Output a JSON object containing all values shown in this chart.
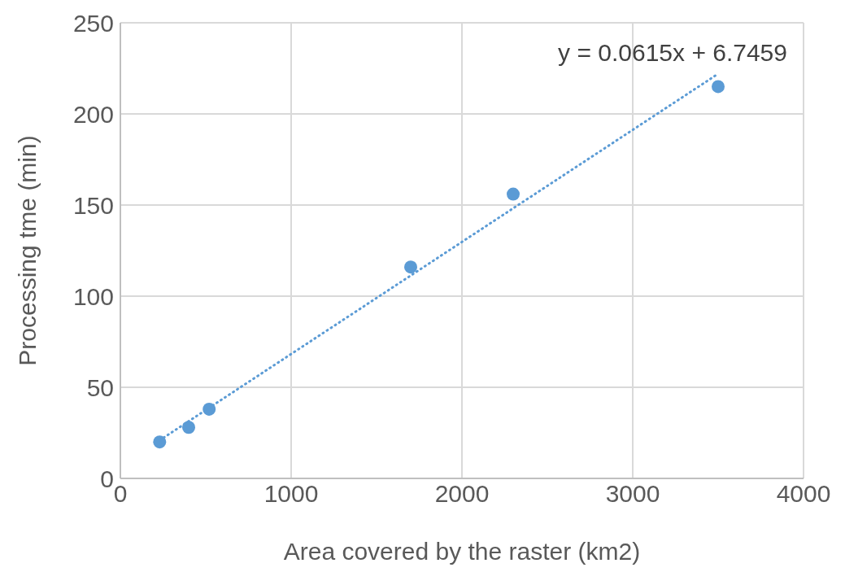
{
  "chart_data": {
    "type": "scatter",
    "xlabel": "Area covered by the raster (km2)",
    "ylabel": "Processing tme (min)",
    "xlim": [
      0,
      4000
    ],
    "xticks": [
      0,
      1000,
      2000,
      3000,
      4000
    ],
    "ylim": [
      0,
      250
    ],
    "yticks": [
      0,
      50,
      100,
      150,
      200,
      250
    ],
    "grid": true,
    "marker": "circle",
    "series": [
      {
        "type": "scatter",
        "color": "#5b9bd5",
        "x": [
          230,
          400,
          520,
          1700,
          2300,
          3500
        ],
        "values": [
          20,
          28,
          38,
          116,
          156,
          215
        ]
      },
      {
        "type": "line",
        "color": "#5b9bd5",
        "line_style": "dotted",
        "marker": "none",
        "x": [
          230,
          3500
        ],
        "values": [
          20.9,
          222
        ]
      }
    ],
    "annotations": [
      "y = 0.0615x + 6.7459"
    ]
  }
}
